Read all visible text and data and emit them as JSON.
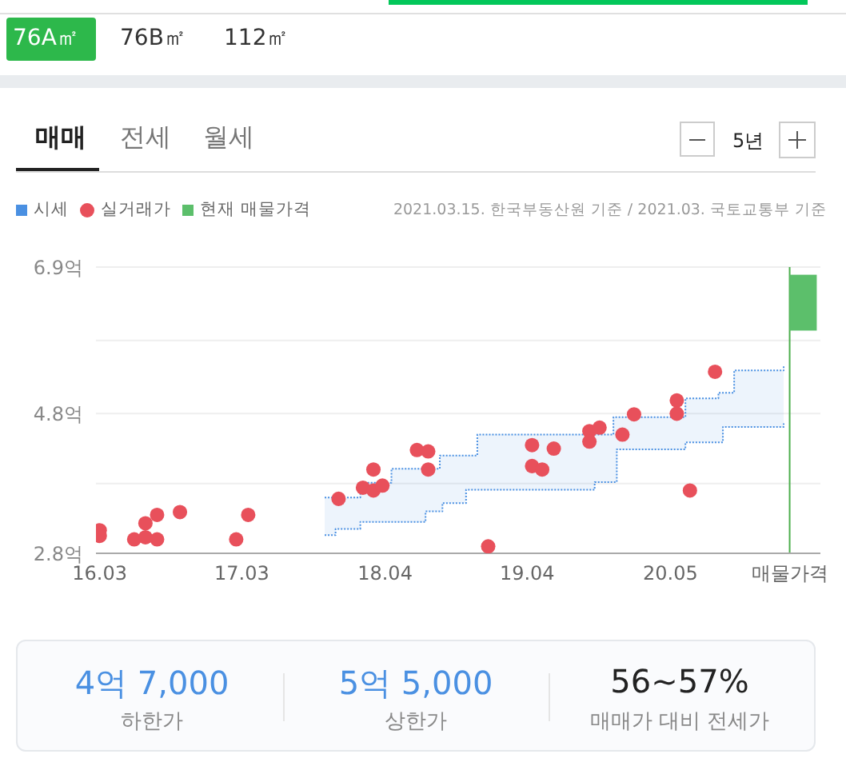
{
  "chart_data": {
    "type": "scatter",
    "annotations": [
      "76A㎡",
      "76B㎡",
      "112㎡",
      "매매",
      "전세",
      "월세",
      "5년",
      "2021.03.15. 한국부동산원 기준 / 2021.03. 국토교통부 기준",
      "4억 7,000",
      "하한가",
      "5억 5,000",
      "상한가",
      "56~57%",
      "매매가 대비 전세가"
    ],
    "xlim": [
      "2016-02-20",
      "2021-06-05"
    ],
    "xticks": [
      {
        "value": "2016-03-01",
        "label": "16.03"
      },
      {
        "value": "2017-03-15",
        "label": "17.03"
      },
      {
        "value": "2018-04-01",
        "label": "18.04"
      },
      {
        "value": "2019-04-15",
        "label": "19.04"
      },
      {
        "value": "2020-05-01",
        "label": "20.05"
      },
      {
        "value": "2021-03-15",
        "label": "매물가격"
      }
    ],
    "ylim": [
      2.8,
      6.9
    ],
    "yticks": [
      {
        "value": 2.8,
        "label": "2.8억"
      },
      {
        "value": 3.8,
        "label": null
      },
      {
        "value": 4.8,
        "label": "4.8억"
      },
      {
        "value": 5.85,
        "label": null
      },
      {
        "value": 6.9,
        "label": "6.9억"
      }
    ],
    "grid": "y",
    "legend": "top left",
    "ref_lines": [
      {
        "axis": "x",
        "value": "2021-03-15",
        "label": null,
        "color": "#4cae4c"
      }
    ],
    "series": [
      {
        "name": "시세",
        "type": "step",
        "color": "#4a90e2",
        "line_style": "dotted",
        "x": [
          "2017-10-22",
          "2017-11-20",
          "2018-01-25",
          "2018-04-18",
          "2018-07-18",
          "2018-08-25",
          "2018-09-01",
          "2018-11-03",
          "2018-12-03",
          "2019-10-12",
          "2019-12-01",
          "2019-12-10",
          "2020-06-10",
          "2020-09-06",
          "2020-09-18",
          "2020-10-18",
          "2021-02-27"
        ],
        "lower": [
          3.06,
          3.15,
          3.25,
          3.25,
          3.4,
          3.4,
          3.52,
          3.71,
          3.71,
          3.82,
          3.82,
          4.29,
          4.39,
          4.39,
          4.61,
          4.61,
          4.66
        ],
        "upper": [
          3.6,
          3.6,
          3.81,
          4.01,
          4.01,
          4.2,
          4.2,
          4.2,
          4.5,
          4.5,
          4.75,
          4.75,
          5.02,
          5.1,
          5.1,
          5.42,
          5.48
        ],
        "values": [
          3.6,
          3.6,
          3.81,
          4.01,
          4.01,
          4.2,
          4.2,
          4.2,
          4.5,
          4.5,
          4.75,
          4.75,
          5.02,
          5.1,
          5.1,
          5.42,
          5.48
        ]
      },
      {
        "type": "step",
        "color": "#4a90e2",
        "line_style": "dotted",
        "x": [
          "2017-10-22",
          "2017-11-20",
          "2018-01-25",
          "2018-04-18",
          "2018-07-18",
          "2018-08-25",
          "2018-09-01",
          "2018-11-03",
          "2018-12-03",
          "2019-10-12",
          "2019-12-01",
          "2019-12-10",
          "2020-06-10",
          "2020-09-06",
          "2020-09-18",
          "2020-10-18",
          "2021-02-27"
        ],
        "values": [
          3.06,
          3.15,
          3.25,
          3.25,
          3.4,
          3.4,
          3.52,
          3.71,
          3.71,
          3.82,
          3.82,
          4.29,
          4.39,
          4.39,
          4.61,
          4.61,
          4.66
        ]
      },
      {
        "name": "실거래가",
        "color": "#e8505b",
        "marker": "circle",
        "x": [
          "2016-03-01",
          "2016-03-01",
          "2016-06-01",
          "2016-07-01",
          "2016-07-01",
          "2016-08-01",
          "2016-08-01",
          "2016-10-01",
          "2017-02-28",
          "2017-04-01",
          "2017-11-28",
          "2018-02-01",
          "2018-03-01",
          "2018-03-01",
          "2018-03-25",
          "2018-06-25",
          "2018-07-25",
          "2018-07-25",
          "2019-01-01",
          "2019-04-28",
          "2019-04-28",
          "2019-05-25",
          "2019-06-25",
          "2019-09-28",
          "2019-09-28",
          "2019-10-25",
          "2019-12-25",
          "2020-01-25",
          "2020-05-18",
          "2020-05-18",
          "2020-06-22",
          "2020-08-28"
        ],
        "values": [
          3.13,
          3.05,
          3.0,
          3.23,
          3.03,
          3.35,
          3.0,
          3.39,
          3.0,
          3.35,
          3.58,
          3.74,
          4.0,
          3.7,
          3.77,
          4.28,
          4.26,
          4.0,
          2.9,
          4.35,
          4.05,
          4.0,
          4.3,
          4.55,
          4.4,
          4.6,
          4.5,
          4.79,
          4.99,
          4.8,
          3.7,
          5.4
        ]
      },
      {
        "name": "현재 매물가격",
        "type": "bar",
        "color": "#5cbf6b",
        "x": [
          "2021-04-20"
        ],
        "base": [
          5.99
        ],
        "values": [
          0.8
        ]
      }
    ]
  }
}
